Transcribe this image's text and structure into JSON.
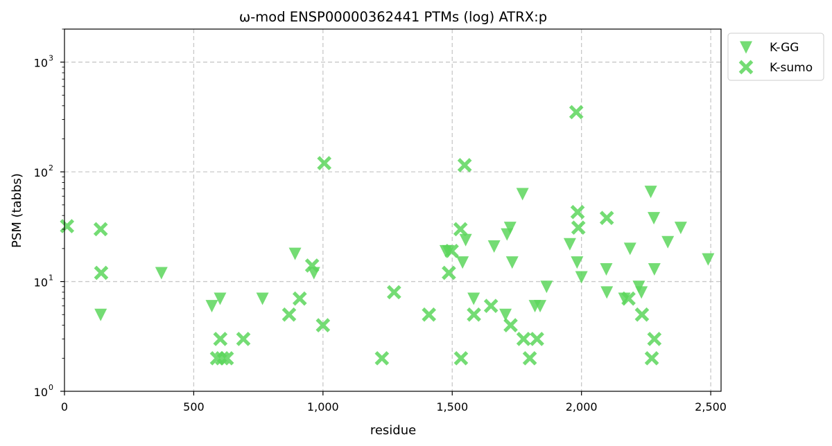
{
  "chart_data": {
    "type": "scatter",
    "title": "ω-mod ENSP00000362441 PTMs (log) ATRX:p",
    "xlabel": "residue",
    "ylabel": "PSM (tabbs)",
    "xlim": [
      0,
      2540
    ],
    "ylim": [
      1,
      2000
    ],
    "yscale": "log",
    "grid": true,
    "legend_position": "top-right",
    "color": "#5cd65c",
    "x_ticks": [
      0,
      500,
      1000,
      1500,
      2000,
      2500
    ],
    "x_tick_labels": [
      "0",
      "500",
      "1,000",
      "1,500",
      "2,000",
      "2,500"
    ],
    "y_ticks": [
      1,
      10,
      100,
      1000
    ],
    "y_tick_labels": [
      "10",
      "10",
      "10",
      "10"
    ],
    "y_tick_exponents": [
      "0",
      "1",
      "2",
      "3"
    ],
    "series": [
      {
        "name": "K-GG",
        "marker": "triangle-down",
        "points": [
          [
            140,
            5
          ],
          [
            375,
            12
          ],
          [
            570,
            6
          ],
          [
            602,
            7
          ],
          [
            766,
            7
          ],
          [
            892,
            18
          ],
          [
            965,
            12
          ],
          [
            1475,
            19
          ],
          [
            1485,
            19
          ],
          [
            1540,
            15
          ],
          [
            1552,
            24
          ],
          [
            1583,
            7
          ],
          [
            1662,
            21
          ],
          [
            1706,
            5
          ],
          [
            1712,
            27
          ],
          [
            1724,
            31
          ],
          [
            1732,
            15
          ],
          [
            1772,
            63
          ],
          [
            1820,
            6
          ],
          [
            1840,
            6
          ],
          [
            1865,
            9
          ],
          [
            1955,
            22
          ],
          [
            1983,
            15
          ],
          [
            2000,
            11
          ],
          [
            2096,
            13
          ],
          [
            2098,
            8
          ],
          [
            2166,
            7
          ],
          [
            2188,
            20
          ],
          [
            2222,
            9
          ],
          [
            2232,
            8
          ],
          [
            2268,
            66
          ],
          [
            2280,
            38
          ],
          [
            2282,
            13
          ],
          [
            2334,
            23
          ],
          [
            2384,
            31
          ],
          [
            2490,
            16
          ]
        ]
      },
      {
        "name": "K-sumo",
        "marker": "x",
        "points": [
          [
            10,
            32
          ],
          [
            140,
            30
          ],
          [
            142,
            12
          ],
          [
            590,
            2
          ],
          [
            603,
            3
          ],
          [
            610,
            2
          ],
          [
            628,
            2
          ],
          [
            692,
            3
          ],
          [
            869,
            5
          ],
          [
            910,
            7
          ],
          [
            958,
            14
          ],
          [
            1000,
            4
          ],
          [
            1005,
            120
          ],
          [
            1228,
            2
          ],
          [
            1275,
            8
          ],
          [
            1410,
            5
          ],
          [
            1487,
            12
          ],
          [
            1498,
            19
          ],
          [
            1532,
            30
          ],
          [
            1534,
            2
          ],
          [
            1548,
            115
          ],
          [
            1584,
            5
          ],
          [
            1650,
            6
          ],
          [
            1726,
            4
          ],
          [
            1776,
            3
          ],
          [
            1800,
            2
          ],
          [
            1828,
            3
          ],
          [
            1980,
            350
          ],
          [
            1985,
            43
          ],
          [
            1988,
            31
          ],
          [
            2098,
            38
          ],
          [
            2182,
            7
          ],
          [
            2234,
            5
          ],
          [
            2272,
            2
          ],
          [
            2282,
            3
          ]
        ]
      }
    ]
  }
}
